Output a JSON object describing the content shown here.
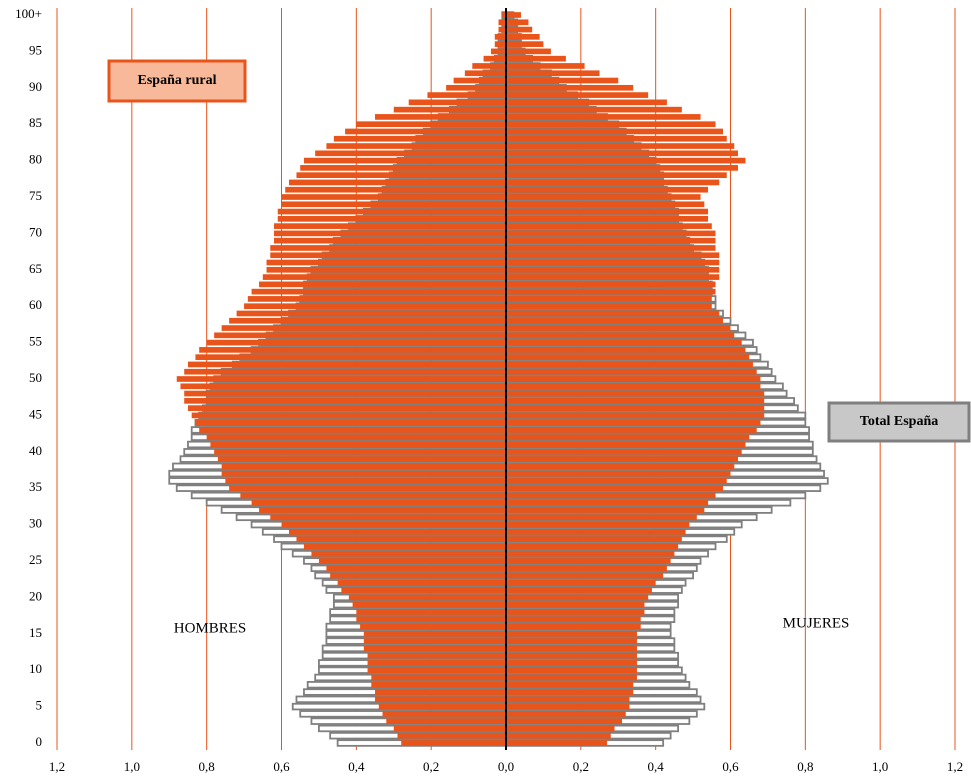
{
  "chart_data": {
    "type": "pyramid",
    "left_label": "HOMBRES",
    "right_label": "MUJERES",
    "categories": [
      "0",
      null,
      null,
      null,
      null,
      "5",
      null,
      null,
      null,
      null,
      "10",
      null,
      null,
      null,
      null,
      "15",
      null,
      null,
      null,
      null,
      "20",
      null,
      null,
      null,
      null,
      "25",
      null,
      null,
      null,
      null,
      "30",
      null,
      null,
      null,
      null,
      "35",
      null,
      null,
      null,
      null,
      "40",
      null,
      null,
      null,
      null,
      "45",
      null,
      null,
      null,
      null,
      "50",
      null,
      null,
      null,
      null,
      "55",
      null,
      null,
      null,
      null,
      "60",
      null,
      null,
      null,
      null,
      "65",
      null,
      null,
      null,
      null,
      "70",
      null,
      null,
      null,
      null,
      "75",
      null,
      null,
      null,
      null,
      "80",
      null,
      null,
      null,
      null,
      "85",
      null,
      null,
      null,
      null,
      "90",
      null,
      null,
      null,
      null,
      "95",
      null,
      null,
      null,
      null,
      "100+"
    ],
    "xlim": [
      -1.2,
      1.2
    ],
    "xticks": [
      {
        "value": -1.2,
        "label": "1,2"
      },
      {
        "value": -1.0,
        "label": "1,0"
      },
      {
        "value": -0.8,
        "label": "0,8"
      },
      {
        "value": -0.6,
        "label": "0,6"
      },
      {
        "value": -0.4,
        "label": "0,4"
      },
      {
        "value": -0.2,
        "label": "0,2"
      },
      {
        "value": 0,
        "label": "0,0"
      },
      {
        "value": 0.2,
        "label": "0,2"
      },
      {
        "value": 0.4,
        "label": "0,4"
      },
      {
        "value": 0.6,
        "label": "0,6"
      },
      {
        "value": 0.8,
        "label": "0,8"
      },
      {
        "value": 1.0,
        "label": "1,0"
      },
      {
        "value": 1.2,
        "label": "1,2"
      }
    ],
    "grid": true,
    "grid_color": "#e8541a",
    "series": [
      {
        "name": "Total España",
        "color": "#ffffff",
        "edge": "#7f7f7f",
        "legend_fill": "#c8c8c8",
        "men": [
          -0.45,
          -0.47,
          -0.5,
          -0.52,
          -0.55,
          -0.57,
          -0.56,
          -0.54,
          -0.53,
          -0.51,
          -0.5,
          -0.5,
          -0.49,
          -0.49,
          -0.48,
          -0.48,
          -0.48,
          -0.47,
          -0.47,
          -0.46,
          -0.46,
          -0.48,
          -0.49,
          -0.51,
          -0.52,
          -0.54,
          -0.57,
          -0.6,
          -0.62,
          -0.65,
          -0.68,
          -0.72,
          -0.76,
          -0.8,
          -0.84,
          -0.88,
          -0.9,
          -0.9,
          -0.89,
          -0.87,
          -0.86,
          -0.85,
          -0.84,
          -0.84,
          -0.83,
          -0.82,
          -0.81,
          -0.8,
          -0.8,
          -0.79,
          -0.78,
          -0.76,
          -0.73,
          -0.71,
          -0.68,
          -0.66,
          -0.64,
          -0.62,
          -0.6,
          -0.58,
          -0.56,
          -0.55,
          -0.54,
          -0.54,
          -0.53,
          -0.52,
          -0.5,
          -0.49,
          -0.47,
          -0.46,
          -0.44,
          -0.42,
          -0.4,
          -0.38,
          -0.36,
          -0.34,
          -0.33,
          -0.32,
          -0.31,
          -0.3,
          -0.29,
          -0.27,
          -0.25,
          -0.24,
          -0.22,
          -0.2,
          -0.18,
          -0.15,
          -0.13,
          -0.1,
          -0.08,
          -0.07,
          -0.06,
          -0.04,
          -0.03,
          -0.02,
          -0.02,
          -0.02,
          -0.01,
          -0.01,
          -0.01
        ],
        "women": [
          0.42,
          0.44,
          0.46,
          0.49,
          0.51,
          0.53,
          0.52,
          0.51,
          0.49,
          0.48,
          0.47,
          0.46,
          0.46,
          0.45,
          0.45,
          0.44,
          0.44,
          0.45,
          0.45,
          0.46,
          0.46,
          0.47,
          0.48,
          0.5,
          0.51,
          0.52,
          0.54,
          0.56,
          0.59,
          0.61,
          0.63,
          0.67,
          0.71,
          0.76,
          0.8,
          0.84,
          0.86,
          0.85,
          0.84,
          0.83,
          0.82,
          0.82,
          0.81,
          0.81,
          0.8,
          0.8,
          0.78,
          0.77,
          0.75,
          0.74,
          0.72,
          0.71,
          0.7,
          0.68,
          0.67,
          0.66,
          0.64,
          0.62,
          0.6,
          0.58,
          0.56,
          0.56,
          0.55,
          0.55,
          0.54,
          0.54,
          0.53,
          0.52,
          0.5,
          0.49,
          0.48,
          0.47,
          0.46,
          0.46,
          0.45,
          0.44,
          0.43,
          0.42,
          0.42,
          0.41,
          0.4,
          0.38,
          0.36,
          0.34,
          0.32,
          0.3,
          0.27,
          0.24,
          0.22,
          0.19,
          0.16,
          0.14,
          0.12,
          0.09,
          0.07,
          0.05,
          0.04,
          0.04,
          0.03,
          0.03,
          0.02
        ]
      },
      {
        "name": "España rural",
        "color": "#e8541a",
        "edge": "#e8541a",
        "legend_fill": "#f7b999",
        "men": [
          -0.28,
          -0.29,
          -0.3,
          -0.32,
          -0.33,
          -0.34,
          -0.35,
          -0.35,
          -0.36,
          -0.36,
          -0.37,
          -0.37,
          -0.37,
          -0.38,
          -0.38,
          -0.38,
          -0.39,
          -0.4,
          -0.4,
          -0.41,
          -0.42,
          -0.44,
          -0.45,
          -0.47,
          -0.48,
          -0.5,
          -0.52,
          -0.54,
          -0.56,
          -0.58,
          -0.6,
          -0.63,
          -0.66,
          -0.68,
          -0.71,
          -0.74,
          -0.75,
          -0.76,
          -0.76,
          -0.77,
          -0.78,
          -0.79,
          -0.8,
          -0.82,
          -0.83,
          -0.84,
          -0.85,
          -0.86,
          -0.86,
          -0.87,
          -0.88,
          -0.86,
          -0.85,
          -0.83,
          -0.82,
          -0.8,
          -0.78,
          -0.76,
          -0.74,
          -0.72,
          -0.7,
          -0.69,
          -0.68,
          -0.66,
          -0.65,
          -0.64,
          -0.64,
          -0.63,
          -0.63,
          -0.62,
          -0.62,
          -0.62,
          -0.61,
          -0.61,
          -0.6,
          -0.6,
          -0.59,
          -0.58,
          -0.56,
          -0.55,
          -0.54,
          -0.51,
          -0.48,
          -0.46,
          -0.43,
          -0.4,
          -0.35,
          -0.3,
          -0.26,
          -0.21,
          -0.16,
          -0.14,
          -0.11,
          -0.09,
          -0.06,
          -0.04,
          -0.03,
          -0.03,
          -0.02,
          -0.02,
          -0.01
        ],
        "women": [
          0.27,
          0.28,
          0.29,
          0.31,
          0.32,
          0.33,
          0.33,
          0.34,
          0.34,
          0.35,
          0.35,
          0.35,
          0.35,
          0.35,
          0.35,
          0.35,
          0.36,
          0.36,
          0.37,
          0.37,
          0.38,
          0.39,
          0.4,
          0.42,
          0.43,
          0.44,
          0.45,
          0.46,
          0.47,
          0.48,
          0.49,
          0.51,
          0.53,
          0.54,
          0.56,
          0.58,
          0.59,
          0.6,
          0.61,
          0.62,
          0.63,
          0.64,
          0.65,
          0.67,
          0.68,
          0.69,
          0.69,
          0.69,
          0.69,
          0.68,
          0.68,
          0.67,
          0.66,
          0.65,
          0.64,
          0.63,
          0.61,
          0.6,
          0.58,
          0.57,
          0.55,
          0.55,
          0.56,
          0.56,
          0.57,
          0.57,
          0.57,
          0.57,
          0.56,
          0.56,
          0.56,
          0.55,
          0.54,
          0.54,
          0.53,
          0.52,
          0.54,
          0.57,
          0.59,
          0.62,
          0.64,
          0.62,
          0.61,
          0.59,
          0.58,
          0.56,
          0.52,
          0.47,
          0.43,
          0.38,
          0.34,
          0.3,
          0.25,
          0.21,
          0.16,
          0.12,
          0.1,
          0.09,
          0.07,
          0.06,
          0.04
        ]
      }
    ]
  }
}
